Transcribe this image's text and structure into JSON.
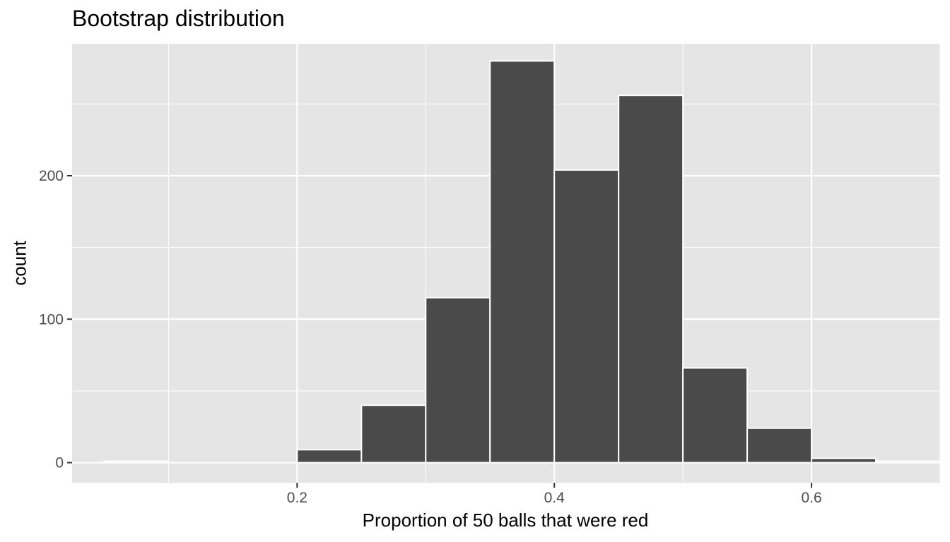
{
  "chart_data": {
    "type": "bar",
    "title": "Bootstrap distribution",
    "xlabel": "Proportion of 50 balls that were red",
    "ylabel": "count",
    "xlim": [
      0.025,
      0.7
    ],
    "ylim": [
      -14,
      292
    ],
    "x_ticks": [
      0.2,
      0.4,
      0.6
    ],
    "x_tick_labels": [
      "0.2",
      "0.4",
      "0.6"
    ],
    "y_ticks": [
      0,
      100,
      200
    ],
    "y_tick_labels": [
      "0",
      "100",
      "200"
    ],
    "x_minor_grid": [
      0.1,
      0.3,
      0.5,
      0.7
    ],
    "y_minor_grid": [
      50,
      150,
      250
    ],
    "grid": true,
    "bin_width": 0.05,
    "bins": [
      {
        "x_start": 0.05,
        "x_end": 0.1,
        "count": 1
      },
      {
        "x_start": 0.1,
        "x_end": 0.15,
        "count": 0
      },
      {
        "x_start": 0.15,
        "x_end": 0.2,
        "count": 0
      },
      {
        "x_start": 0.2,
        "x_end": 0.25,
        "count": 9
      },
      {
        "x_start": 0.25,
        "x_end": 0.3,
        "count": 40
      },
      {
        "x_start": 0.3,
        "x_end": 0.35,
        "count": 115
      },
      {
        "x_start": 0.35,
        "x_end": 0.4,
        "count": 280
      },
      {
        "x_start": 0.4,
        "x_end": 0.45,
        "count": 204
      },
      {
        "x_start": 0.45,
        "x_end": 0.5,
        "count": 256
      },
      {
        "x_start": 0.5,
        "x_end": 0.55,
        "count": 66
      },
      {
        "x_start": 0.55,
        "x_end": 0.6,
        "count": 24
      },
      {
        "x_start": 0.6,
        "x_end": 0.65,
        "count": 3
      },
      {
        "x_start": 0.65,
        "x_end": 0.7,
        "count": 1
      }
    ],
    "colors": {
      "panel_background": "#e5e5e5",
      "grid": "#ffffff",
      "bar_fill": "#4a4a4a",
      "bar_outline": "#ffffff",
      "tick_text": "#4d4d4d"
    }
  }
}
